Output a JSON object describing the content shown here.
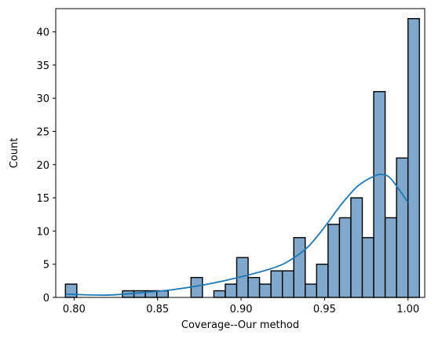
{
  "chart_data": {
    "type": "bar",
    "subtype": "histogram",
    "xlabel": "Coverage--Our method",
    "ylabel": "Count",
    "xlim": [
      0.789,
      1.01
    ],
    "ylim": [
      0,
      43.5
    ],
    "xticks": [
      0.8,
      0.85,
      0.9,
      0.95,
      1.0
    ],
    "xtick_labels": [
      "0.80",
      "0.85",
      "0.90",
      "0.95",
      "1.00"
    ],
    "yticks": [
      0,
      5,
      10,
      15,
      20,
      25,
      30,
      35,
      40
    ],
    "ytick_labels": [
      "0",
      "5",
      "10",
      "15",
      "20",
      "25",
      "30",
      "35",
      "40"
    ],
    "bin_start": 0.7948,
    "bin_width": 0.006839,
    "counts": [
      2,
      0,
      0,
      0,
      0,
      1,
      1,
      1,
      1,
      0,
      0,
      3,
      0,
      1,
      2,
      6,
      3,
      2,
      4,
      4,
      9,
      2,
      5,
      11,
      12,
      15,
      9,
      31,
      12,
      21,
      42
    ],
    "kde": {
      "x": [
        0.795,
        0.8,
        0.82,
        0.84,
        0.86,
        0.88,
        0.9,
        0.92,
        0.93,
        0.94,
        0.95,
        0.96,
        0.97,
        0.98,
        0.985,
        0.99,
        1.0
      ],
      "y": [
        0.5,
        0.45,
        0.35,
        0.7,
        1.2,
        2.0,
        3.1,
        4.5,
        5.7,
        7.6,
        10.6,
        14.0,
        16.8,
        18.3,
        18.5,
        17.8,
        14.3
      ]
    },
    "bar_color": "#7fa8cc",
    "kde_color": "#1f77b4",
    "grid": false,
    "legend": "none"
  }
}
